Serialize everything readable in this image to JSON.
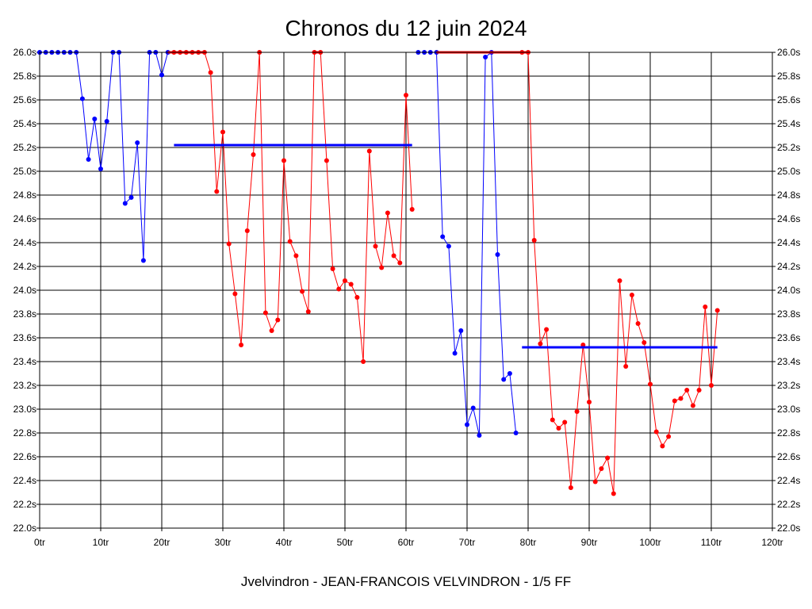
{
  "chart_data": {
    "type": "line",
    "title": "Chronos du 12 juin 2024",
    "footer": "Jvelvindron - JEAN-FRANCOIS VELVINDRON - 1/5 FF",
    "x_unit": "tr",
    "y_unit": "s",
    "xlim": [
      0,
      120
    ],
    "ylim": [
      22.0,
      26.0
    ],
    "x_ticks": [
      "0tr",
      "10tr",
      "20tr",
      "30tr",
      "40tr",
      "50tr",
      "60tr",
      "70tr",
      "80tr",
      "90tr",
      "100tr",
      "110tr",
      "120tr"
    ],
    "y_ticks": [
      "22.0s",
      "22.2s",
      "22.4s",
      "22.6s",
      "22.8s",
      "23.0s",
      "23.2s",
      "23.4s",
      "23.6s",
      "23.8s",
      "24.0s",
      "24.2s",
      "24.4s",
      "24.6s",
      "24.8s",
      "25.0s",
      "25.2s",
      "25.4s",
      "25.6s",
      "25.8s",
      "26.0s"
    ],
    "grid": true,
    "colors": {
      "session_a": "#0000ff",
      "session_b": "#ff0000"
    },
    "series": [
      {
        "color": "#0000ff",
        "x": [
          0,
          1,
          2,
          3,
          4,
          5,
          6,
          7,
          8,
          9,
          10,
          11,
          12,
          13,
          14,
          15,
          16,
          17,
          18,
          19,
          20,
          21
        ],
        "y": [
          26.0,
          26.0,
          26.0,
          26.0,
          26.0,
          26.0,
          26.0,
          25.61,
          25.1,
          25.44,
          25.02,
          25.42,
          26.0,
          26.0,
          24.73,
          24.78,
          25.24,
          24.25,
          26.0,
          26.0,
          25.81,
          26.0
        ]
      },
      {
        "color": "#ff0000",
        "x": [
          22,
          23,
          24,
          25,
          26,
          27,
          28,
          29,
          30,
          31,
          32,
          33,
          34,
          35,
          36,
          37,
          38,
          39,
          40,
          41,
          42,
          43,
          44,
          45,
          46,
          47,
          48,
          49,
          50,
          51,
          52,
          53,
          54,
          55,
          56,
          57,
          58,
          59,
          60,
          61
        ],
        "y": [
          26.0,
          26.0,
          26.0,
          26.0,
          26.0,
          26.0,
          25.83,
          24.83,
          25.33,
          24.39,
          23.97,
          23.54,
          24.5,
          25.14,
          26.0,
          23.81,
          23.66,
          23.75,
          25.09,
          24.41,
          24.29,
          23.99,
          23.82,
          26.0,
          26.0,
          25.09,
          24.18,
          24.01,
          24.08,
          24.05,
          23.94,
          23.4,
          25.17,
          24.37,
          24.19,
          24.65,
          24.29,
          24.23,
          25.64,
          24.68
        ]
      },
      {
        "color": "#0000ff",
        "x": [
          62,
          63,
          64,
          65,
          66,
          67,
          68,
          69,
          70,
          71,
          72,
          73,
          74,
          75,
          76,
          77,
          78
        ],
        "y": [
          26.0,
          26.0,
          26.0,
          26.0,
          24.45,
          24.37,
          23.47,
          23.66,
          22.87,
          23.01,
          22.78,
          25.96,
          26.0,
          24.3,
          23.25,
          23.3,
          22.8
        ]
      },
      {
        "color": "#ff0000",
        "x": [
          79,
          80,
          81,
          82,
          83,
          84,
          85,
          86,
          87,
          88,
          89,
          90,
          91,
          92,
          93,
          94,
          95,
          96,
          97,
          98,
          99,
          100,
          101,
          102,
          103,
          104,
          105,
          106,
          107,
          108,
          109,
          110,
          111
        ],
        "y": [
          26.0,
          26.0,
          24.42,
          23.55,
          23.67,
          22.91,
          22.84,
          22.89,
          22.34,
          22.98,
          23.54,
          23.06,
          22.39,
          22.5,
          22.59,
          22.29,
          24.08,
          23.36,
          23.96,
          23.72,
          23.56,
          23.21,
          22.81,
          22.69,
          22.77,
          23.07,
          23.09,
          23.16,
          23.03,
          23.16,
          23.86,
          23.2,
          23.83
        ]
      }
    ],
    "bests": [
      {
        "color": "#0000ff",
        "x": [
          22,
          61
        ],
        "y": 25.22
      },
      {
        "color": "#0000ff",
        "x": [
          79,
          111
        ],
        "y": 23.52
      }
    ]
  }
}
